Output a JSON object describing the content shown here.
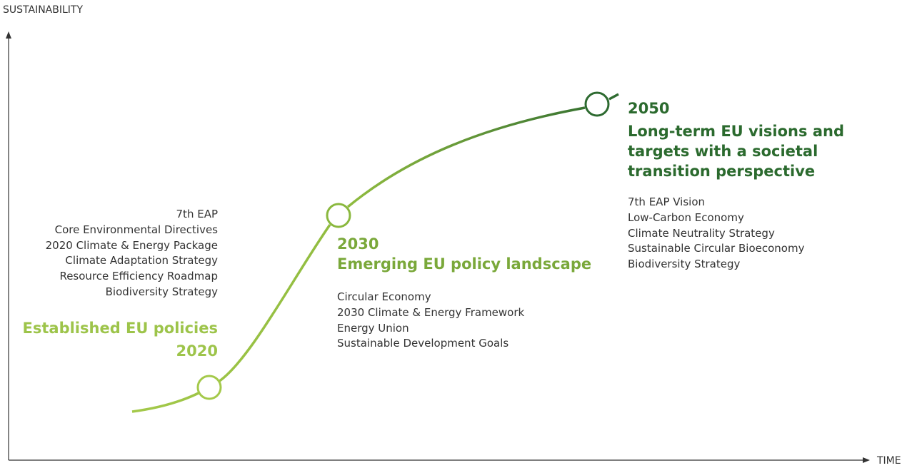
{
  "y_axis_label": "SUSTAINABILITY",
  "x_axis_label": "TIME",
  "milestones": [
    {
      "year": "2020",
      "title": "Established EU policies",
      "items": [
        "7th EAP",
        "Core Environmental Directives",
        "2020 Climate & Energy Package",
        "Climate Adaptation Strategy",
        "Resource Efficiency Roadmap",
        "Biodiversity Strategy"
      ]
    },
    {
      "year": "2030",
      "title": "Emerging EU policy landscape",
      "items": [
        "Circular Economy",
        "2030 Climate & Energy Framework",
        "Energy Union",
        "Sustainable Development Goals"
      ]
    },
    {
      "year": "2050",
      "title": "Long-term EU visions and targets with a societal transition perspective",
      "items": [
        "7th EAP Vision",
        "Low-Carbon Economy",
        "Climate Neutrality Strategy",
        "Sustainable Circular Bioeconomy",
        "Biodiversity Strategy"
      ]
    }
  ]
}
